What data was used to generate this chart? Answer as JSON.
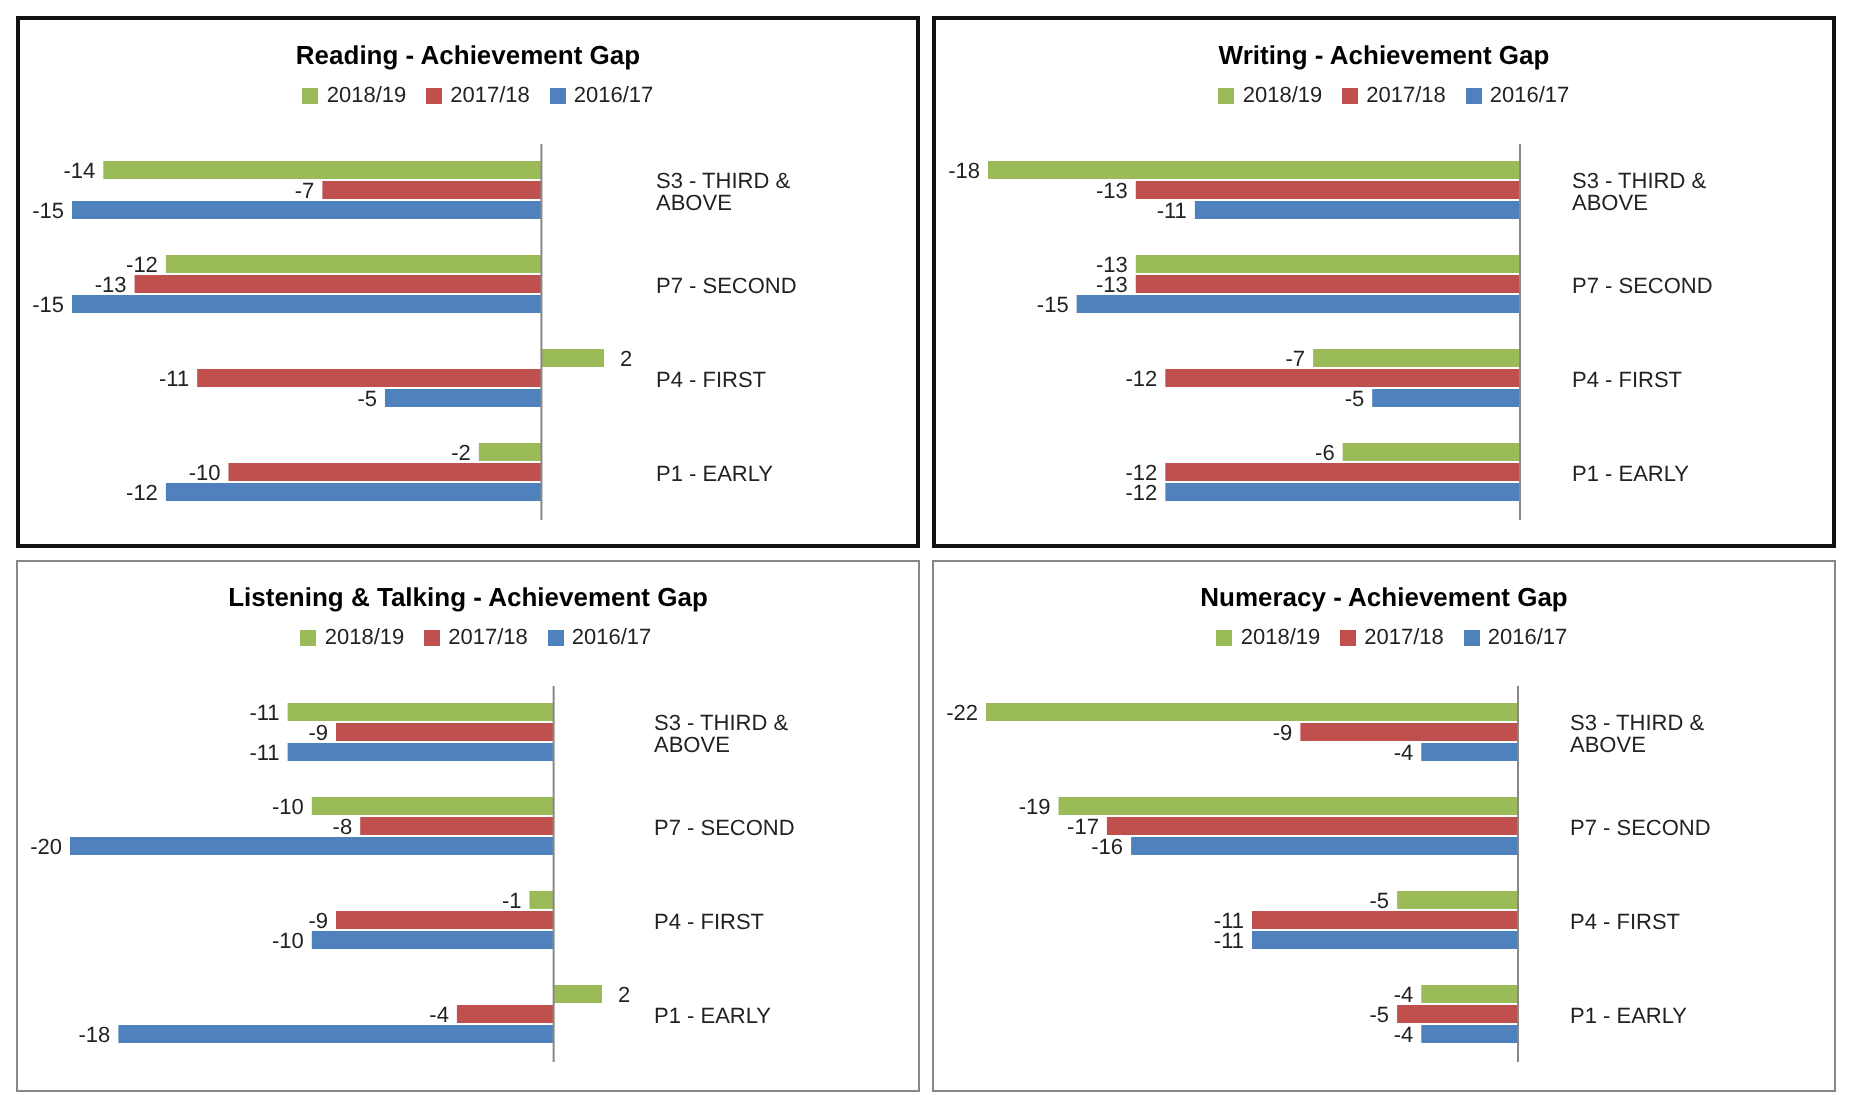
{
  "chart_data": [
    {
      "type": "bar",
      "orientation": "horizontal",
      "title": "Reading - Achievement Gap",
      "categories": [
        "S3 - THIRD & ABOVE",
        "P7 - SECOND",
        "P4 - FIRST",
        "P1 - EARLY"
      ],
      "series": [
        {
          "name": "2018/19",
          "color": "#9bbb59",
          "values": [
            -14,
            -12,
            2,
            -2
          ]
        },
        {
          "name": "2017/18",
          "color": "#c0504d",
          "values": [
            -7,
            -13,
            -11,
            -10
          ]
        },
        {
          "name": "2016/17",
          "color": "#4f81bd",
          "values": [
            -15,
            -15,
            -5,
            -12
          ]
        }
      ],
      "data_labels": true,
      "legend": "top",
      "grid": false
    },
    {
      "type": "bar",
      "orientation": "horizontal",
      "title": "Writing - Achievement Gap",
      "categories": [
        "S3 - THIRD & ABOVE",
        "P7 - SECOND",
        "P4 - FIRST",
        "P1 - EARLY"
      ],
      "series": [
        {
          "name": "2018/19",
          "color": "#9bbb59",
          "values": [
            -18,
            -13,
            -7,
            -6
          ]
        },
        {
          "name": "2017/18",
          "color": "#c0504d",
          "values": [
            -13,
            -13,
            -12,
            -12
          ]
        },
        {
          "name": "2016/17",
          "color": "#4f81bd",
          "values": [
            -11,
            -15,
            -5,
            -12
          ]
        }
      ],
      "data_labels": true,
      "legend": "top",
      "grid": false
    },
    {
      "type": "bar",
      "orientation": "horizontal",
      "title": "Listening & Talking - Achievement Gap",
      "categories": [
        "S3 - THIRD & ABOVE",
        "P7 - SECOND",
        "P4 - FIRST",
        "P1 - EARLY"
      ],
      "series": [
        {
          "name": "2018/19",
          "color": "#9bbb59",
          "values": [
            -11,
            -10,
            -1,
            2
          ]
        },
        {
          "name": "2017/18",
          "color": "#c0504d",
          "values": [
            -9,
            -8,
            -9,
            -4
          ]
        },
        {
          "name": "2016/17",
          "color": "#4f81bd",
          "values": [
            -11,
            -20,
            -10,
            -18
          ]
        }
      ],
      "data_labels": true,
      "legend": "top",
      "grid": false
    },
    {
      "type": "bar",
      "orientation": "horizontal",
      "title": "Numeracy - Achievement Gap",
      "categories": [
        "S3 - THIRD & ABOVE",
        "P7 - SECOND",
        "P4 - FIRST",
        "P1 - EARLY"
      ],
      "series": [
        {
          "name": "2018/19",
          "color": "#9bbb59",
          "values": [
            -22,
            -19,
            -5,
            -4
          ]
        },
        {
          "name": "2017/18",
          "color": "#c0504d",
          "values": [
            -9,
            -17,
            -11,
            -5
          ]
        },
        {
          "name": "2016/17",
          "color": "#4f81bd",
          "values": [
            -4,
            -16,
            -11,
            -4
          ]
        }
      ],
      "data_labels": true,
      "legend": "top",
      "grid": false
    }
  ]
}
